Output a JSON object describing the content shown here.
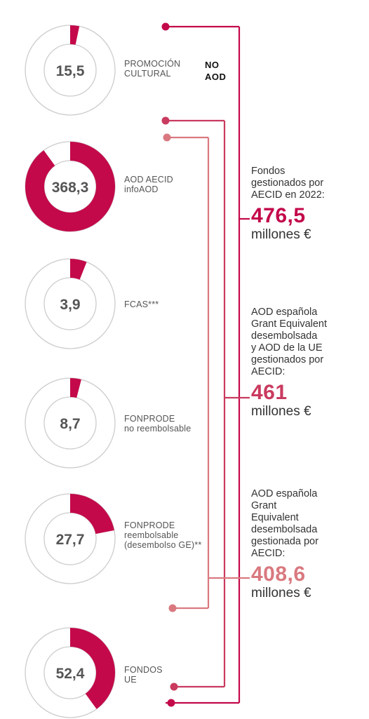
{
  "colors": {
    "primary": "#c3094a",
    "medium": "#c93a5f",
    "light": "#d9797f",
    "ring_gray": "#cccccc",
    "value_text": "#555555"
  },
  "chart_data": {
    "type": "donut",
    "series": [
      {
        "value": 15.5,
        "value_label": "15,5",
        "label": [
          "PROMOCIÓN",
          "CULTURAL"
        ],
        "fraction": 0.033
      },
      {
        "value": 368.3,
        "value_label": "368,3",
        "label": [
          "AOD AECID",
          "infoAOD"
        ],
        "fraction": 0.9
      },
      {
        "value": 3.9,
        "value_label": "3,9",
        "label": [
          "FCAS***"
        ],
        "fraction": 0.06
      },
      {
        "value": 8.7,
        "value_label": "8,7",
        "label": [
          "FONPRODE",
          "no reembolsable"
        ],
        "fraction": 0.04
      },
      {
        "value": 27.7,
        "value_label": "27,7",
        "label": [
          "FONPRODE",
          "reembolsable",
          "(desembolso GE)**"
        ],
        "fraction": 0.22
      },
      {
        "value": 52.4,
        "value_label": "52,4",
        "label": [
          "FONDOS",
          "UE"
        ],
        "fraction": 0.4
      }
    ],
    "groups": [
      {
        "id": "total",
        "description": [
          "Fondos",
          "gestionados por",
          "AECID en 2022:"
        ],
        "value": 476.5,
        "value_label": "476,5",
        "unit": "millones €"
      },
      {
        "id": "aod_ue",
        "description": [
          "AOD española",
          "Grant Equivalent",
          "desembolsada",
          "y AOD de la UE",
          "gestionados por",
          "AECID:"
        ],
        "value": 461,
        "value_label": "461",
        "unit": "millones €"
      },
      {
        "id": "aod",
        "description": [
          "AOD española",
          "Grant",
          "Equivalent",
          "desembolsada",
          "gestionada por",
          "AECID:"
        ],
        "value": 408.6,
        "value_label": "408,6",
        "unit": "millones €"
      }
    ],
    "no_aod_label": [
      "NO",
      "AOD"
    ]
  }
}
